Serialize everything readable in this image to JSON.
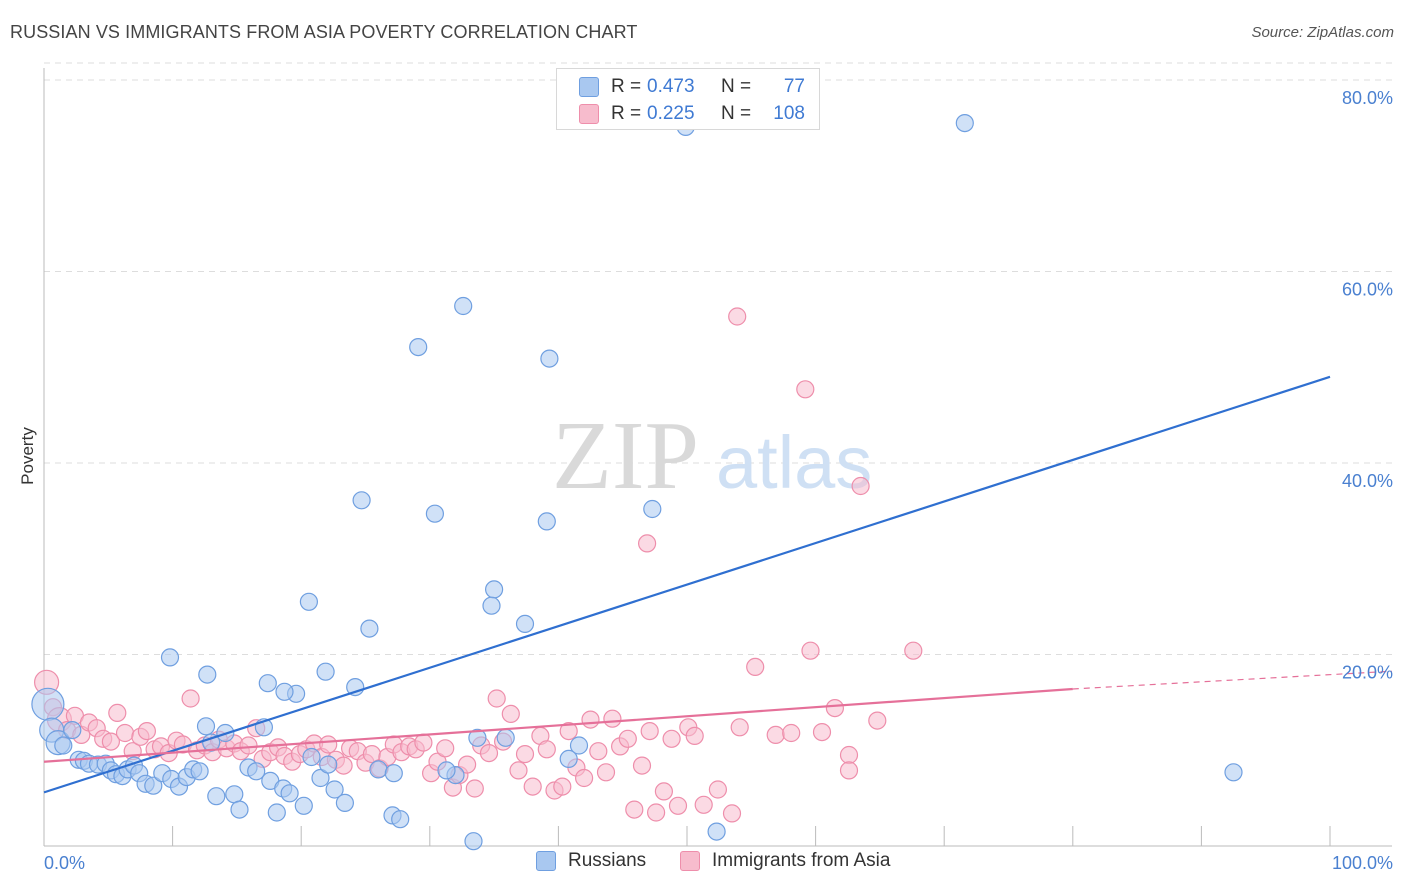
{
  "header": {
    "title": "RUSSIAN VS IMMIGRANTS FROM ASIA POVERTY CORRELATION CHART",
    "source": "Source: ZipAtlas.com"
  },
  "watermark": {
    "zip": "ZIP",
    "atlas": "atlas"
  },
  "colors": {
    "blue_fill": "#a9c8f0",
    "blue_stroke": "#6f9fe0",
    "blue_line": "#2f6fd0",
    "pink_fill": "#f7bccd",
    "pink_stroke": "#ee8eab",
    "pink_line": "#e57099",
    "grid": "#dddddd",
    "tick_text": "#4a80d0"
  },
  "legend": {
    "rows": [
      {
        "r_label": "R =",
        "r_value": "0.473",
        "n_label": "N =",
        "n_value": "77"
      },
      {
        "r_label": "R =",
        "r_value": "0.225",
        "n_label": "N =",
        "n_value": "108"
      }
    ]
  },
  "bottom_legend": {
    "series1": "Russians",
    "series2": "Immigrants from Asia"
  },
  "chart_data": {
    "type": "scatter",
    "title": "RUSSIAN VS IMMIGRANTS FROM ASIA POVERTY CORRELATION CHART",
    "xlabel": "",
    "ylabel": "Poverty",
    "xlim": [
      0,
      100
    ],
    "ylim": [
      0,
      82
    ],
    "x_tick_labels": [
      "0.0%",
      "100.0%"
    ],
    "y_ticks": [
      20,
      40,
      60,
      80
    ],
    "y_tick_labels": [
      "20.0%",
      "40.0%",
      "60.0%",
      "80.0%"
    ],
    "grid": true,
    "series": [
      {
        "name": "Russians",
        "R": 0.473,
        "N": 77,
        "trend": {
          "x": [
            0,
            100
          ],
          "y": [
            5.6,
            49.0
          ]
        },
        "points": [
          [
            0.3,
            14.8,
            3
          ],
          [
            0.6,
            12.1,
            2
          ],
          [
            1.1,
            10.8,
            2
          ],
          [
            1.5,
            10.5,
            1
          ],
          [
            2.2,
            12.1,
            1
          ],
          [
            2.7,
            9.0,
            1
          ],
          [
            3.1,
            8.9,
            1
          ],
          [
            3.5,
            8.6,
            1
          ],
          [
            4.2,
            8.5,
            1
          ],
          [
            4.8,
            8.6,
            1
          ],
          [
            5.2,
            7.9,
            1
          ],
          [
            5.6,
            7.5,
            1
          ],
          [
            6.1,
            7.3,
            1
          ],
          [
            6.5,
            8.0,
            1
          ],
          [
            7.0,
            8.4,
            1
          ],
          [
            7.4,
            7.6,
            1
          ],
          [
            7.9,
            6.5,
            1
          ],
          [
            8.5,
            6.3,
            1
          ],
          [
            9.2,
            7.6,
            1
          ],
          [
            9.9,
            7.0,
            1
          ],
          [
            10.5,
            6.2,
            1
          ],
          [
            11.1,
            7.2,
            1
          ],
          [
            11.6,
            8.0,
            1
          ],
          [
            12.1,
            7.8,
            1
          ],
          [
            12.6,
            12.5,
            1
          ],
          [
            13.0,
            10.8,
            1
          ],
          [
            13.4,
            5.2,
            1
          ],
          [
            14.1,
            11.8,
            1
          ],
          [
            14.8,
            5.4,
            1
          ],
          [
            15.2,
            3.8,
            1
          ],
          [
            15.9,
            8.2,
            1
          ],
          [
            16.5,
            7.8,
            1
          ],
          [
            17.1,
            12.4,
            1
          ],
          [
            17.6,
            6.8,
            1
          ],
          [
            18.1,
            3.5,
            1
          ],
          [
            18.6,
            6.0,
            1
          ],
          [
            19.1,
            5.5,
            1
          ],
          [
            19.6,
            15.9,
            1
          ],
          [
            20.2,
            4.2,
            1
          ],
          [
            20.8,
            9.3,
            1
          ],
          [
            21.5,
            7.1,
            1
          ],
          [
            22.1,
            8.5,
            1
          ],
          [
            22.6,
            5.9,
            1
          ],
          [
            23.4,
            4.5,
            1
          ],
          [
            24.7,
            36.1,
            1
          ],
          [
            25.3,
            22.7,
            1
          ],
          [
            26.0,
            8.0,
            1
          ],
          [
            27.1,
            3.2,
            1
          ],
          [
            27.7,
            2.8,
            1
          ],
          [
            29.1,
            52.1,
            1
          ],
          [
            30.4,
            34.7,
            1
          ],
          [
            32.0,
            7.4,
            1
          ],
          [
            32.6,
            56.4,
            1
          ],
          [
            33.4,
            0.5,
            1
          ],
          [
            35.0,
            26.8,
            1
          ],
          [
            34.8,
            25.1,
            1
          ],
          [
            35.9,
            11.3,
            1
          ],
          [
            37.4,
            23.2,
            1
          ],
          [
            39.1,
            33.9,
            1
          ],
          [
            39.3,
            50.9,
            1
          ],
          [
            40.8,
            9.1,
            1
          ],
          [
            41.6,
            10.5,
            1
          ],
          [
            47.3,
            35.2,
            1
          ],
          [
            49.9,
            75.1,
            1
          ],
          [
            52.3,
            1.5,
            1
          ],
          [
            71.6,
            75.5,
            1
          ],
          [
            92.5,
            7.7,
            1
          ],
          [
            9.8,
            19.7,
            1
          ],
          [
            12.7,
            17.9,
            1
          ],
          [
            17.4,
            17.0,
            1
          ],
          [
            18.7,
            16.1,
            1
          ],
          [
            20.6,
            25.5,
            1
          ],
          [
            21.9,
            18.2,
            1
          ],
          [
            24.2,
            16.6,
            1
          ],
          [
            27.2,
            7.6,
            1
          ],
          [
            31.3,
            7.9,
            1
          ],
          [
            33.7,
            11.3,
            1
          ]
        ]
      },
      {
        "name": "Immigrants from Asia",
        "R": 0.225,
        "N": 108,
        "trend": {
          "x": [
            0,
            80,
            100
          ],
          "y": [
            8.8,
            16.4,
            18.1
          ]
        },
        "points": [
          [
            0.2,
            17.1,
            2
          ],
          [
            0.7,
            14.5,
            1
          ],
          [
            1.2,
            13.2,
            2
          ],
          [
            1.8,
            12.1,
            1
          ],
          [
            2.4,
            13.6,
            1
          ],
          [
            2.9,
            11.6,
            1
          ],
          [
            3.5,
            12.9,
            1
          ],
          [
            4.1,
            12.3,
            1
          ],
          [
            4.6,
            11.2,
            1
          ],
          [
            5.2,
            10.9,
            1
          ],
          [
            5.7,
            13.9,
            1
          ],
          [
            6.3,
            11.8,
            1
          ],
          [
            6.9,
            9.9,
            1
          ],
          [
            7.5,
            11.4,
            1
          ],
          [
            8.0,
            12.0,
            1
          ],
          [
            8.6,
            10.1,
            1
          ],
          [
            9.1,
            10.4,
            1
          ],
          [
            9.7,
            9.7,
            1
          ],
          [
            10.3,
            11.0,
            1
          ],
          [
            10.8,
            10.6,
            1
          ],
          [
            11.4,
            15.4,
            1
          ],
          [
            11.9,
            10.0,
            1
          ],
          [
            12.5,
            10.5,
            1
          ],
          [
            13.1,
            9.8,
            1
          ],
          [
            13.6,
            11.1,
            1
          ],
          [
            14.2,
            10.2,
            1
          ],
          [
            14.8,
            10.7,
            1
          ],
          [
            15.3,
            9.9,
            1
          ],
          [
            15.9,
            10.5,
            1
          ],
          [
            16.5,
            12.3,
            1
          ],
          [
            17.0,
            9.1,
            1
          ],
          [
            17.6,
            9.8,
            1
          ],
          [
            18.2,
            10.3,
            1
          ],
          [
            18.7,
            9.4,
            1
          ],
          [
            19.3,
            8.8,
            1
          ],
          [
            19.9,
            9.6,
            1
          ],
          [
            20.4,
            10.1,
            1
          ],
          [
            21.0,
            10.7,
            1
          ],
          [
            21.6,
            9.3,
            1
          ],
          [
            22.1,
            10.6,
            1
          ],
          [
            22.7,
            9.0,
            1
          ],
          [
            23.3,
            8.4,
            1
          ],
          [
            23.8,
            10.2,
            1
          ],
          [
            24.4,
            9.9,
            1
          ],
          [
            25.0,
            8.7,
            1
          ],
          [
            25.5,
            9.6,
            1
          ],
          [
            26.1,
            8.1,
            1
          ],
          [
            26.7,
            9.3,
            1
          ],
          [
            27.2,
            10.6,
            1
          ],
          [
            27.8,
            9.8,
            1
          ],
          [
            28.4,
            10.4,
            1
          ],
          [
            28.9,
            10.1,
            1
          ],
          [
            29.5,
            10.8,
            1
          ],
          [
            30.1,
            7.6,
            1
          ],
          [
            30.6,
            8.8,
            1
          ],
          [
            31.2,
            10.2,
            1
          ],
          [
            31.8,
            6.1,
            1
          ],
          [
            32.3,
            7.4,
            1
          ],
          [
            32.9,
            8.5,
            1
          ],
          [
            33.5,
            6.0,
            1
          ],
          [
            34.0,
            10.5,
            1
          ],
          [
            34.6,
            9.7,
            1
          ],
          [
            35.2,
            15.4,
            1
          ],
          [
            35.7,
            10.9,
            1
          ],
          [
            36.3,
            13.8,
            1
          ],
          [
            36.9,
            7.9,
            1
          ],
          [
            37.4,
            9.6,
            1
          ],
          [
            38.0,
            6.2,
            1
          ],
          [
            38.6,
            11.5,
            1
          ],
          [
            39.1,
            10.1,
            1
          ],
          [
            39.7,
            5.8,
            1
          ],
          [
            40.3,
            6.2,
            1
          ],
          [
            40.8,
            12.0,
            1
          ],
          [
            41.4,
            8.2,
            1
          ],
          [
            42.0,
            7.1,
            1
          ],
          [
            42.5,
            13.2,
            1
          ],
          [
            43.1,
            9.9,
            1
          ],
          [
            43.7,
            7.7,
            1
          ],
          [
            44.2,
            13.3,
            1
          ],
          [
            44.8,
            10.4,
            1
          ],
          [
            45.4,
            11.2,
            1
          ],
          [
            45.9,
            3.8,
            1
          ],
          [
            46.5,
            8.4,
            1
          ],
          [
            47.1,
            12.0,
            1
          ],
          [
            47.6,
            3.5,
            1
          ],
          [
            48.2,
            5.7,
            1
          ],
          [
            48.8,
            11.2,
            1
          ],
          [
            49.3,
            4.2,
            1
          ],
          [
            50.1,
            12.4,
            1
          ],
          [
            50.6,
            11.5,
            1
          ],
          [
            51.3,
            4.3,
            1
          ],
          [
            52.4,
            5.9,
            1
          ],
          [
            53.5,
            3.4,
            1
          ],
          [
            54.1,
            12.4,
            1
          ],
          [
            55.3,
            18.7,
            1
          ],
          [
            56.9,
            11.6,
            1
          ],
          [
            58.1,
            11.8,
            1
          ],
          [
            59.6,
            20.4,
            1
          ],
          [
            62.6,
            9.5,
            1
          ],
          [
            67.6,
            20.4,
            1
          ],
          [
            53.9,
            55.3,
            1
          ],
          [
            59.2,
            47.7,
            1
          ],
          [
            63.5,
            37.6,
            1
          ],
          [
            60.5,
            11.9,
            1
          ],
          [
            62.6,
            7.9,
            1
          ],
          [
            61.5,
            14.4,
            1
          ],
          [
            64.8,
            13.1,
            1
          ],
          [
            46.9,
            31.6,
            1
          ]
        ]
      }
    ]
  }
}
